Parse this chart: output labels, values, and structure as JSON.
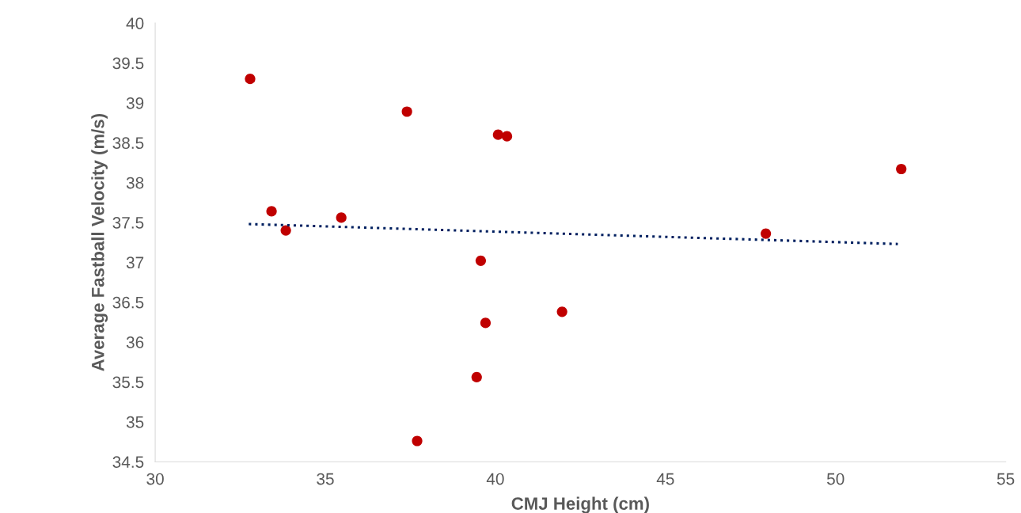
{
  "chart_data": {
    "type": "scatter",
    "xlabel": "CMJ Height (cm)",
    "ylabel": "Average Fastball Velocity (m/s)",
    "series": [
      {
        "color": "#c00000",
        "marker": "circle",
        "x": [
          32.79,
          33.42,
          33.84,
          35.47,
          37.4,
          37.7,
          39.45,
          39.57,
          39.71,
          40.08,
          40.34,
          41.96,
          47.95,
          51.93
        ],
        "values": [
          39.3,
          37.64,
          37.4,
          37.56,
          38.89,
          34.76,
          35.56,
          37.02,
          36.24,
          38.6,
          38.58,
          36.38,
          37.36,
          38.17
        ]
      },
      {
        "type": "line",
        "color": "#002060",
        "line_style": "dotted",
        "marker": "none",
        "x": [
          32.75,
          51.83
        ],
        "values": [
          37.48,
          37.23
        ]
      }
    ],
    "xlim": [
      30,
      55
    ],
    "xticks": [
      30,
      35,
      40,
      45,
      50,
      55
    ],
    "ylim": [
      34.5,
      40
    ],
    "yticks": [
      34.5,
      35,
      35.5,
      36,
      36.5,
      37,
      37.5,
      38,
      38.5,
      39,
      39.5,
      40
    ],
    "grid": false,
    "legend": false
  }
}
